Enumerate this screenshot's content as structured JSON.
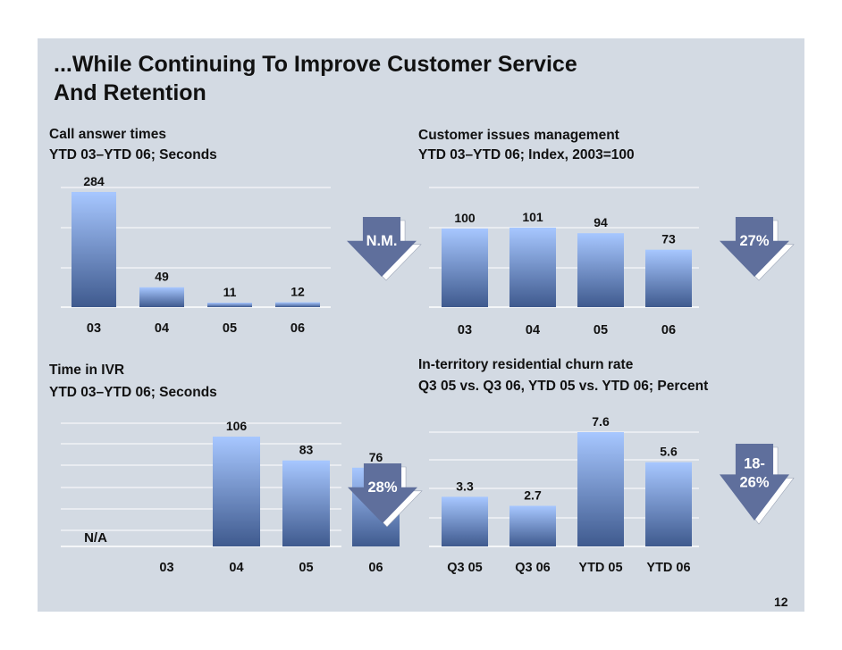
{
  "title_line1": "...While Continuing To Improve Customer Service",
  "title_line2": "And Retention",
  "page_number": "12",
  "colors": {
    "bar_top": "#a7c7ff",
    "bar_bottom": "#3f5a8e",
    "arrow": "#5f6f9c",
    "background": "#d3dae3"
  },
  "chart_data": [
    {
      "id": "call-answer",
      "type": "bar",
      "title": "Call answer times",
      "subtitle": "YTD 03–YTD 06; Seconds",
      "categories": [
        "03",
        "04",
        "05",
        "06"
      ],
      "values": [
        284,
        49,
        11,
        12
      ],
      "labels": [
        "284",
        "49",
        "11",
        "12"
      ],
      "ylim": [
        0,
        284
      ],
      "change_label": [
        "N.M."
      ]
    },
    {
      "id": "customer-issues",
      "type": "bar",
      "title": "Customer issues management",
      "subtitle": "YTD 03–YTD 06; Index, 2003=100",
      "categories": [
        "03",
        "04",
        "05",
        "06"
      ],
      "values": [
        100,
        101,
        94,
        73
      ],
      "labels": [
        "100",
        "101",
        "94",
        "73"
      ],
      "ylim": [
        0,
        101
      ],
      "change_label": [
        "27%"
      ]
    },
    {
      "id": "time-ivr",
      "type": "bar",
      "title": "Time in IVR",
      "subtitle": "YTD 03–YTD 06; Seconds",
      "categories": [
        "03",
        "04",
        "05",
        "06"
      ],
      "values": [
        null,
        106,
        83,
        76
      ],
      "labels": [
        "N/A",
        "106",
        "83",
        "76"
      ],
      "ylim": [
        0,
        106
      ],
      "change_label": [
        "28%"
      ]
    },
    {
      "id": "churn",
      "type": "bar",
      "title": "In-territory residential churn rate",
      "subtitle": "Q3 05 vs. Q3 06, YTD 05 vs. YTD 06; Percent",
      "categories": [
        "Q3 05",
        "Q3 06",
        "YTD 05",
        "YTD 06"
      ],
      "values": [
        3.3,
        2.7,
        7.6,
        5.6
      ],
      "labels": [
        "3.3",
        "2.7",
        "7.6",
        "5.6"
      ],
      "ylim": [
        0,
        7.6
      ],
      "change_label": [
        "18-",
        "26%"
      ]
    }
  ]
}
